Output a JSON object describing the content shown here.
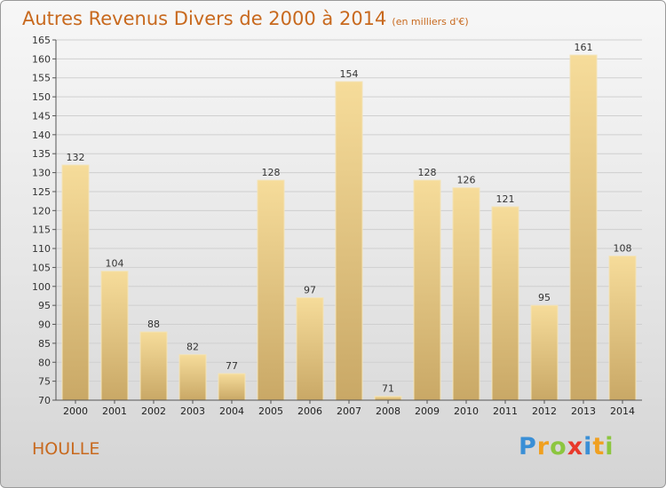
{
  "title": {
    "main": "Autres Revenus Divers de 2000 à 2014",
    "sub": "(en milliers d'€)"
  },
  "place": "HOULLE",
  "logo": {
    "letters": [
      "P",
      "r",
      "o",
      "x",
      "i",
      "t",
      "i"
    ],
    "colors": [
      "#3a8fd6",
      "#f0a020",
      "#8cc63f",
      "#e8392b",
      "#3a8fd6",
      "#f0a020",
      "#8cc63f"
    ]
  },
  "colors": {
    "title": "#c8691e",
    "bar_light": "#f6dc9a",
    "bar_dark": "#c9a866",
    "grid": "#cfcfcf"
  },
  "chart_data": {
    "type": "bar",
    "title": "Autres Revenus Divers de 2000 à 2014",
    "subtitle": "(en milliers d'€)",
    "categories": [
      "2000",
      "2001",
      "2002",
      "2003",
      "2004",
      "2005",
      "2006",
      "2007",
      "2008",
      "2009",
      "2010",
      "2011",
      "2012",
      "2013",
      "2014"
    ],
    "values": [
      132,
      104,
      88,
      82,
      77,
      128,
      97,
      154,
      71,
      128,
      126,
      121,
      95,
      161,
      108
    ],
    "ylim": [
      70,
      165
    ],
    "yticks": [
      70,
      75,
      80,
      85,
      90,
      95,
      100,
      105,
      110,
      115,
      120,
      125,
      130,
      135,
      140,
      145,
      150,
      155,
      160,
      165
    ],
    "grid": true
  }
}
